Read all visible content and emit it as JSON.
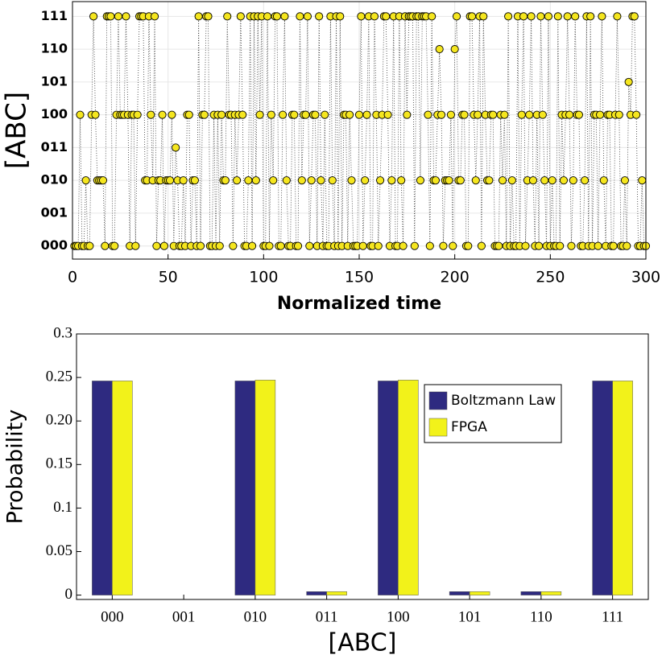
{
  "chart_data": [
    {
      "type": "scatter",
      "xlabel": "Normalized time",
      "ylabel": "[ABC]",
      "color": "#f5e61f",
      "edgecolor": "#000000",
      "grid": true,
      "xlim": [
        0,
        300
      ],
      "xticks": [
        0,
        50,
        100,
        150,
        200,
        250,
        300
      ],
      "ylim": [
        -0.4,
        7.45
      ],
      "yticks": [
        {
          "value": 0,
          "label": "000"
        },
        {
          "value": 1,
          "label": "001"
        },
        {
          "value": 2,
          "label": "010"
        },
        {
          "value": 3,
          "label": "011"
        },
        {
          "value": 4,
          "label": "100"
        },
        {
          "value": 5,
          "label": "101"
        },
        {
          "value": 6,
          "label": "110"
        },
        {
          "value": 7,
          "label": "111"
        }
      ],
      "x": [
        1,
        2,
        3,
        4,
        5,
        6,
        7,
        8,
        9,
        10,
        11,
        12,
        13,
        14,
        15,
        16,
        17,
        18,
        19,
        20,
        21,
        22,
        23,
        24,
        25,
        26,
        27,
        28,
        29,
        30,
        31,
        32,
        33,
        34,
        35,
        36,
        37,
        38,
        39,
        40,
        41,
        42,
        43,
        44,
        45,
        46,
        47,
        48,
        49,
        50,
        51,
        52,
        53,
        54,
        55,
        56,
        57,
        58,
        59,
        60,
        61,
        62,
        63,
        64,
        65,
        66,
        67,
        68,
        69,
        70,
        71,
        72,
        73,
        74,
        75,
        76,
        77,
        78,
        79,
        80,
        81,
        82,
        83,
        84,
        85,
        86,
        87,
        88,
        89,
        90,
        91,
        92,
        93,
        94,
        95,
        96,
        97,
        98,
        99,
        100,
        101,
        102,
        103,
        104,
        105,
        106,
        107,
        108,
        109,
        110,
        111,
        112,
        113,
        114,
        115,
        116,
        117,
        118,
        119,
        120,
        121,
        122,
        123,
        124,
        125,
        126,
        127,
        128,
        129,
        130,
        131,
        132,
        133,
        134,
        135,
        136,
        137,
        138,
        139,
        140,
        141,
        142,
        143,
        144,
        145,
        146,
        147,
        148,
        149,
        150,
        151,
        152,
        153,
        154,
        155,
        156,
        157,
        158,
        159,
        160,
        161,
        162,
        163,
        164,
        165,
        166,
        167,
        168,
        169,
        170,
        171,
        172,
        173,
        174,
        175,
        176,
        177,
        178,
        179,
        180,
        181,
        182,
        183,
        184,
        185,
        186,
        187,
        188,
        189,
        190,
        191,
        192,
        193,
        194,
        195,
        196,
        197,
        198,
        199,
        200,
        201,
        202,
        203,
        204,
        205,
        206,
        207,
        208,
        209,
        210,
        211,
        212,
        213,
        214,
        215,
        216,
        217,
        218,
        219,
        220,
        221,
        222,
        223,
        224,
        225,
        226,
        227,
        228,
        229,
        230,
        231,
        232,
        233,
        234,
        235,
        236,
        237,
        238,
        239,
        240,
        241,
        242,
        243,
        244,
        245,
        246,
        247,
        248,
        249,
        250,
        251,
        252,
        253,
        254,
        255,
        256,
        257,
        258,
        259,
        260,
        261,
        262,
        263,
        264,
        265,
        266,
        267,
        268,
        269,
        270,
        271,
        272,
        273,
        274,
        275,
        276,
        277,
        278,
        279,
        280,
        281,
        282,
        283,
        284,
        285,
        286,
        287,
        288,
        289,
        290,
        291,
        292,
        293,
        294,
        295,
        296,
        297,
        298,
        299,
        300
      ],
      "values": [
        0,
        0,
        0,
        4,
        0,
        0,
        2,
        0,
        0,
        4,
        7,
        4,
        2,
        2,
        2,
        2,
        0,
        7,
        7,
        7,
        0,
        0,
        4,
        7,
        4,
        4,
        4,
        7,
        4,
        0,
        4,
        4,
        0,
        4,
        7,
        7,
        7,
        2,
        2,
        7,
        4,
        2,
        7,
        0,
        2,
        2,
        4,
        0,
        2,
        2,
        2,
        4,
        0,
        3,
        2,
        0,
        0,
        2,
        0,
        4,
        4,
        0,
        2,
        2,
        0,
        7,
        0,
        4,
        4,
        7,
        7,
        0,
        0,
        4,
        0,
        4,
        0,
        4,
        2,
        2,
        7,
        4,
        4,
        0,
        4,
        2,
        4,
        7,
        4,
        0,
        0,
        2,
        7,
        0,
        7,
        2,
        7,
        4,
        7,
        0,
        0,
        7,
        0,
        4,
        2,
        7,
        7,
        0,
        0,
        4,
        7,
        2,
        0,
        0,
        4,
        4,
        0,
        0,
        7,
        2,
        4,
        4,
        7,
        0,
        2,
        4,
        4,
        0,
        7,
        2,
        0,
        4,
        0,
        0,
        7,
        2,
        0,
        7,
        0,
        7,
        0,
        4,
        4,
        0,
        4,
        2,
        0,
        0,
        0,
        4,
        7,
        0,
        2,
        4,
        7,
        0,
        0,
        7,
        4,
        0,
        2,
        4,
        7,
        7,
        4,
        0,
        2,
        7,
        0,
        0,
        7,
        2,
        0,
        7,
        4,
        7,
        7,
        7,
        0,
        7,
        7,
        2,
        7,
        7,
        7,
        4,
        0,
        7,
        2,
        2,
        4,
        6,
        4,
        0,
        2,
        2,
        2,
        4,
        0,
        6,
        7,
        2,
        2,
        4,
        4,
        0,
        0,
        7,
        7,
        4,
        2,
        4,
        7,
        0,
        7,
        4,
        2,
        2,
        4,
        4,
        0,
        0,
        0,
        4,
        2,
        4,
        0,
        7,
        0,
        2,
        0,
        0,
        7,
        0,
        4,
        7,
        0,
        2,
        4,
        7,
        2,
        0,
        4,
        0,
        7,
        4,
        2,
        0,
        7,
        0,
        2,
        0,
        0,
        7,
        0,
        4,
        2,
        4,
        7,
        4,
        0,
        2,
        7,
        4,
        4,
        0,
        0,
        2,
        7,
        0,
        7,
        0,
        4,
        4,
        0,
        4,
        7,
        2,
        0,
        4,
        4,
        0,
        0,
        4,
        7,
        4,
        0,
        0,
        2,
        0,
        5,
        4,
        7,
        7,
        4,
        0,
        0,
        2,
        0,
        0
      ]
    },
    {
      "type": "bar",
      "xlabel": "[ABC]",
      "ylabel": "Probability",
      "legend": "northeast",
      "grid": false,
      "categories": [
        "000",
        "001",
        "010",
        "011",
        "100",
        "101",
        "110",
        "111"
      ],
      "ylim": [
        -0.005,
        0.3
      ],
      "yticks": [
        0,
        0.05,
        0.1,
        0.15,
        {
          "value": 0.2,
          "label": "0.20"
        },
        0.25,
        0.3
      ],
      "series": [
        {
          "name": "Boltzmann Law",
          "color": "#2e2a80",
          "values": [
            0.246,
            0,
            0.246,
            0.004,
            0.246,
            0.004,
            0.004,
            0.246
          ]
        },
        {
          "name": "FPGA",
          "color": "#f2f21a",
          "values": [
            0.246,
            0,
            0.247,
            0.004,
            0.247,
            0.004,
            0.004,
            0.246
          ]
        }
      ]
    }
  ]
}
